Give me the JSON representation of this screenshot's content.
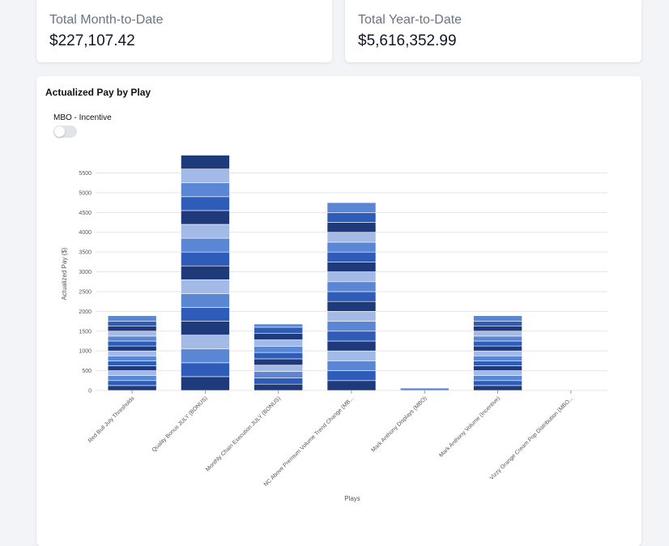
{
  "summary": {
    "mtd": {
      "label": "Total Month-to-Date",
      "value": "$227,107.42"
    },
    "ytd": {
      "label": "Total Year-to-Date",
      "value": "$5,616,352.99"
    }
  },
  "chart_card": {
    "title": "Actualized Pay by Play",
    "toggle_label": "MBO - Incentive",
    "toggle_on": false
  },
  "chart_data": {
    "type": "bar",
    "stacked": true,
    "title": "",
    "xlabel": "Plays",
    "ylabel": "Actualized Pay ($)",
    "ylim": [
      0,
      5900
    ],
    "yticks": [
      0,
      500,
      1000,
      1500,
      2000,
      2500,
      3000,
      3500,
      4000,
      4500,
      5000,
      5500
    ],
    "grid": true,
    "legend": "none",
    "colors": [
      "#1e3a7a",
      "#2e5cb8",
      "#5b86d4",
      "#a3b9e6"
    ],
    "categories": [
      "Red Bull July Thresholds",
      "Quality Bonus JULY (BONUS)",
      "Monthly Chain Execution JULY (BONUS)",
      "NC Above Premium Volume Trend Change (MB...",
      "Mark Anthony Displays (MBO)",
      "Mark Anthony Volume (Incentive)",
      "Vizzy Orange Cream Pop Distribution (MBO..."
    ],
    "totals": [
      1890,
      5950,
      1680,
      4750,
      60,
      1890,
      0
    ],
    "segments": [
      [
        125,
        125,
        125,
        125,
        125,
        125,
        125,
        125,
        125,
        125,
        125,
        125,
        125,
        125,
        140
      ],
      [
        350,
        350,
        350,
        350,
        350,
        350,
        350,
        350,
        350,
        350,
        350,
        350,
        350,
        350,
        350,
        350,
        350
      ],
      [
        160,
        160,
        160,
        160,
        160,
        160,
        160,
        160,
        160,
        160,
        80
      ],
      [
        250,
        250,
        250,
        250,
        250,
        250,
        250,
        250,
        250,
        250,
        250,
        250,
        250,
        250,
        250,
        250,
        250,
        250,
        250
      ],
      [
        60
      ],
      [
        125,
        125,
        125,
        125,
        125,
        125,
        125,
        125,
        125,
        125,
        125,
        125,
        125,
        125,
        140
      ],
      []
    ]
  }
}
